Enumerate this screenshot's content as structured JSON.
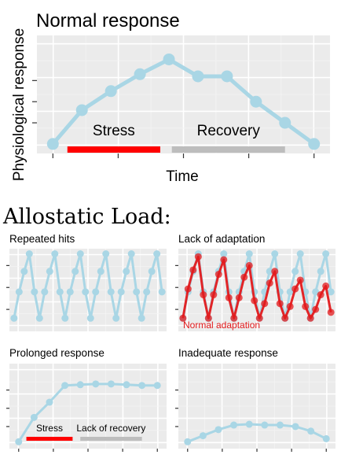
{
  "colors": {
    "panel": "#ebebeb",
    "grid_major": "#ffffff",
    "grid_minor": "#f4f4f4",
    "series": "#a9d6e5",
    "adapt": "#e31a1c",
    "stress": "#ff0000",
    "recovery": "#bdbdbd",
    "tick": "#333333"
  },
  "section_title": "Allostatic Load:",
  "chart_data": [
    {
      "type": "line",
      "title": "Normal response",
      "xlabel": "Time",
      "ylabel": "Physiological response",
      "x": [
        1,
        2,
        3,
        4,
        5,
        6,
        7,
        8,
        9,
        10
      ],
      "ylim": [
        0,
        5
      ],
      "series": [
        {
          "values": [
            0.0,
            1.6,
            2.5,
            3.3,
            4.0,
            3.2,
            3.2,
            2.0,
            1.0,
            0.0
          ]
        }
      ],
      "annotations": [
        {
          "label": "Stress",
          "bar_from": 1.5,
          "bar_to": 4.7
        },
        {
          "label": "Recovery",
          "bar_from": 5.1,
          "bar_to": 9.0
        }
      ]
    },
    {
      "type": "line",
      "title": "Repeated hits",
      "x": [
        1,
        2,
        3,
        4,
        5,
        6,
        7,
        8,
        9,
        10,
        11,
        12,
        13,
        14,
        15,
        16,
        17,
        18,
        19,
        20,
        21,
        22,
        23,
        24,
        25,
        26,
        27,
        28,
        29,
        30
      ],
      "ylim": [
        0,
        5
      ],
      "series": [
        {
          "values": [
            0.4,
            2.2,
            3.6,
            4.8,
            2.2,
            0.4,
            2.2,
            3.6,
            4.8,
            2.2,
            0.4,
            2.2,
            3.6,
            4.8,
            2.2,
            0.4,
            2.2,
            3.6,
            4.8,
            2.2,
            0.4,
            2.2,
            3.6,
            4.8,
            2.2,
            0.4,
            2.2,
            3.6,
            4.8,
            2.2
          ]
        }
      ]
    },
    {
      "type": "line",
      "title": "Lack of adaptation",
      "x": [
        1,
        2,
        3,
        4,
        5,
        6,
        7,
        8,
        9,
        10,
        11,
        12,
        13,
        14,
        15,
        16,
        17,
        18,
        19,
        20,
        21,
        22,
        23,
        24,
        25,
        26,
        27,
        28,
        29,
        30
      ],
      "ylim": [
        0,
        5
      ],
      "series": [
        {
          "values": [
            0.4,
            2.2,
            3.6,
            4.8,
            2.2,
            0.4,
            2.2,
            3.6,
            4.8,
            2.2,
            0.4,
            2.2,
            3.6,
            4.8,
            2.2,
            0.4,
            2.2,
            3.6,
            4.8,
            2.2,
            0.4,
            2.2,
            3.6,
            4.8,
            2.2,
            0.4,
            2.2,
            3.6,
            4.8,
            2.2
          ]
        },
        {
          "name": "Normal adaptation",
          "values": [
            0.4,
            2.4,
            3.7,
            4.6,
            2.0,
            0.4,
            2.0,
            3.4,
            4.4,
            1.8,
            0.4,
            1.8,
            3.2,
            4.0,
            1.6,
            0.4,
            1.4,
            2.8,
            3.6,
            1.4,
            0.4,
            1.2,
            2.4,
            3.0,
            1.2,
            0.4,
            1.0,
            2.0,
            2.6,
            0.8
          ]
        }
      ]
    },
    {
      "type": "line",
      "title": "Prolonged response",
      "x": [
        1,
        2,
        3,
        4,
        5,
        6,
        7,
        8,
        9,
        10
      ],
      "ylim": [
        0,
        5
      ],
      "series": [
        {
          "values": [
            0.0,
            1.6,
            2.6,
            3.7,
            3.75,
            3.8,
            3.8,
            3.75,
            3.7,
            3.7
          ]
        }
      ],
      "annotations": [
        {
          "label": "Stress",
          "bar_from": 1.5,
          "bar_to": 4.5
        },
        {
          "label": "Lack of recovery",
          "bar_from": 5.0,
          "bar_to": 9.0
        }
      ]
    },
    {
      "type": "line",
      "title": "Inadequate response",
      "x": [
        1,
        2,
        3,
        4,
        5,
        6,
        7,
        8,
        9,
        10
      ],
      "ylim": [
        0,
        5
      ],
      "series": [
        {
          "values": [
            0.0,
            0.4,
            0.8,
            1.1,
            1.15,
            1.1,
            1.1,
            1.0,
            0.7,
            0.2
          ]
        }
      ]
    }
  ]
}
